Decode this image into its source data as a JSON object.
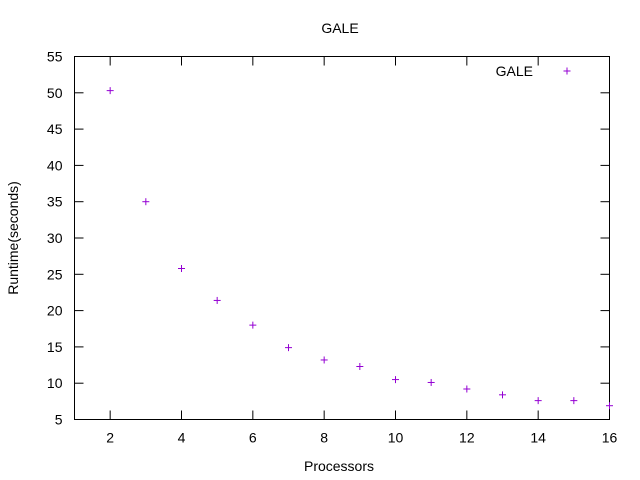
{
  "chart_data": {
    "type": "scatter",
    "title": "GALE",
    "xlabel": "Processors",
    "ylabel": "Runtime(seconds)",
    "xlim": [
      1,
      16
    ],
    "ylim": [
      5,
      55
    ],
    "xticks": [
      2,
      4,
      6,
      8,
      10,
      12,
      14,
      16
    ],
    "yticks": [
      5,
      10,
      15,
      20,
      25,
      30,
      35,
      40,
      45,
      50,
      55
    ],
    "grid": false,
    "legend_position": "top-right",
    "series": [
      {
        "name": "GALE",
        "color": "#9400d3",
        "marker": "plus",
        "x": [
          2,
          3,
          4,
          5,
          6,
          7,
          8,
          9,
          10,
          11,
          12,
          13,
          14,
          15,
          16
        ],
        "y": [
          50.3,
          35.0,
          25.8,
          21.4,
          18.0,
          14.9,
          13.2,
          12.3,
          10.5,
          10.1,
          9.2,
          8.4,
          7.6,
          7.6,
          6.9
        ]
      }
    ]
  }
}
